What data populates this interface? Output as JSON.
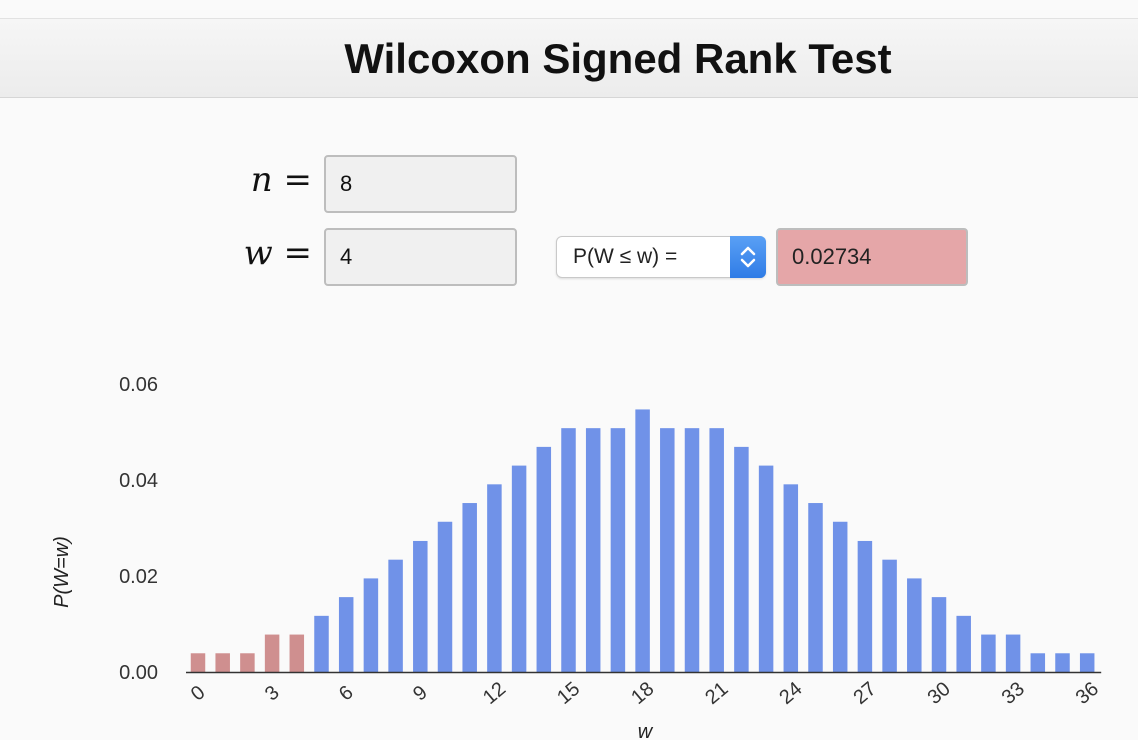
{
  "header": {
    "title": "Wilcoxon Signed Rank Test"
  },
  "inputs": {
    "n_label": "n =",
    "n_value": "8",
    "w_label": "w =",
    "w_value": "4"
  },
  "probability": {
    "selected_option": "P(W ≤ w)  =",
    "result": "0.02734"
  },
  "colors": {
    "highlight": "#cf8f8f",
    "bar": "#7092e8",
    "result_bg": "#e5a6a8",
    "select_arrow": "#3a86ec"
  },
  "icons": {
    "select_arrow": "chevron-up-down-icon"
  },
  "chart_data": {
    "type": "bar",
    "xlabel": "w",
    "ylabel": "P(W=w)",
    "ylim": [
      0,
      0.06
    ],
    "yticks": [
      0.0,
      0.02,
      0.04,
      0.06
    ],
    "ytick_labels": [
      "0.00",
      "0.02",
      "0.04",
      "0.06"
    ],
    "xticks": [
      0,
      3,
      6,
      9,
      12,
      15,
      18,
      21,
      24,
      27,
      30,
      33,
      36
    ],
    "highlight_upto": 4,
    "x": [
      0,
      1,
      2,
      3,
      4,
      5,
      6,
      7,
      8,
      9,
      10,
      11,
      12,
      13,
      14,
      15,
      16,
      17,
      18,
      19,
      20,
      21,
      22,
      23,
      24,
      25,
      26,
      27,
      28,
      29,
      30,
      31,
      32,
      33,
      34,
      35,
      36
    ],
    "values": [
      0.0039,
      0.0039,
      0.0039,
      0.0078,
      0.0078,
      0.0117,
      0.0156,
      0.0195,
      0.0234,
      0.0273,
      0.0313,
      0.0352,
      0.0391,
      0.043,
      0.0469,
      0.0508,
      0.0508,
      0.0508,
      0.0547,
      0.0508,
      0.0508,
      0.0508,
      0.0469,
      0.043,
      0.0391,
      0.0352,
      0.0313,
      0.0273,
      0.0234,
      0.0195,
      0.0156,
      0.0117,
      0.0078,
      0.0078,
      0.0039,
      0.0039,
      0.0039
    ]
  }
}
